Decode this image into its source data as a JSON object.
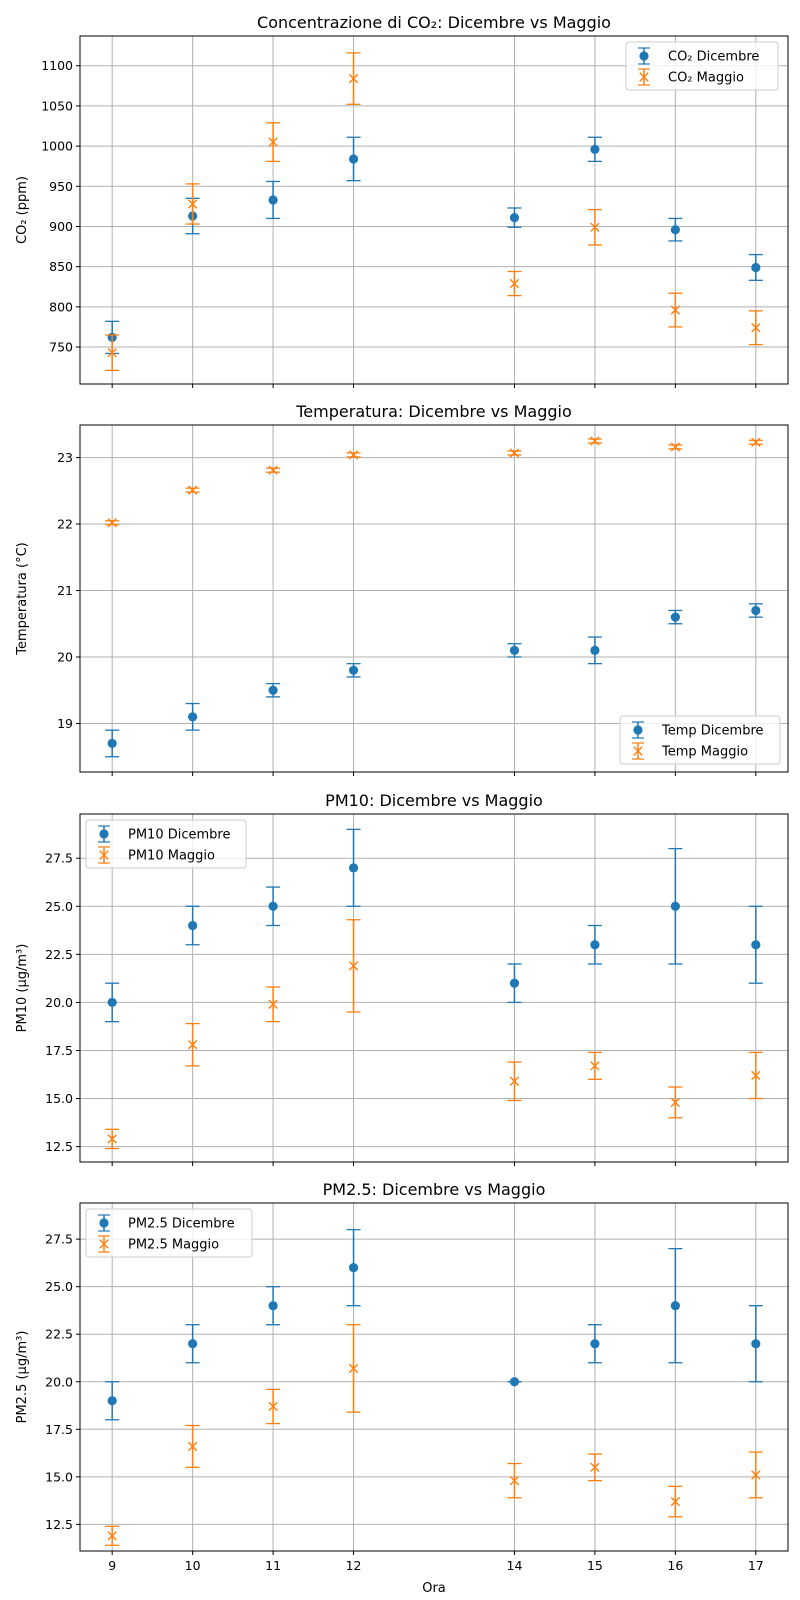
{
  "colors": {
    "dicembre": "#1f77b4",
    "maggio": "#ff7f0e"
  },
  "chart_data": [
    {
      "type": "scatter",
      "title": "Concentrazione di CO₂: Dicembre vs Maggio",
      "ylabel": "CO₂ (ppm)",
      "xlabel": "",
      "x": [
        9,
        10,
        11,
        12,
        14,
        15,
        16,
        17
      ],
      "xlim": [
        8.6,
        17.4
      ],
      "ylim": [
        704,
        1137
      ],
      "yticks": [
        750,
        800,
        850,
        900,
        950,
        1000,
        1050,
        1100
      ],
      "yticklabels": [
        "750",
        "800",
        "850",
        "900",
        "950",
        "1000",
        "1050",
        "1100"
      ],
      "legend": "upper-right",
      "grid": true,
      "series": [
        {
          "name": "CO₂ Dicembre",
          "marker": "circle",
          "values": [
            762,
            913,
            933,
            984,
            911,
            996,
            896,
            849
          ],
          "errors": [
            20,
            22,
            23,
            27,
            12,
            15,
            14,
            16
          ]
        },
        {
          "name": "CO₂ Maggio",
          "marker": "x",
          "values": [
            743,
            928,
            1005,
            1084,
            829,
            899,
            796,
            774
          ],
          "errors": [
            22,
            25,
            24,
            32,
            15,
            22,
            21,
            21
          ]
        }
      ]
    },
    {
      "type": "scatter",
      "title": "Temperatura: Dicembre vs Maggio",
      "ylabel": "Temperatura (°C)",
      "xlabel": "",
      "x": [
        9,
        10,
        11,
        12,
        14,
        15,
        16,
        17
      ],
      "xlim": [
        8.6,
        17.4
      ],
      "ylim": [
        18.27,
        23.49
      ],
      "yticks": [
        19,
        20,
        21,
        22,
        23
      ],
      "yticklabels": [
        "19",
        "20",
        "21",
        "22",
        "23"
      ],
      "legend": "lower-right",
      "grid": true,
      "series": [
        {
          "name": "Temp Dicembre",
          "marker": "circle",
          "values": [
            18.7,
            19.1,
            19.5,
            19.8,
            20.1,
            20.1,
            20.6,
            20.7
          ],
          "errors": [
            0.2,
            0.2,
            0.1,
            0.1,
            0.1,
            0.2,
            0.1,
            0.1
          ]
        },
        {
          "name": "Temp Maggio",
          "marker": "x",
          "values": [
            22.02,
            22.51,
            22.81,
            23.04,
            23.07,
            23.25,
            23.16,
            23.23
          ],
          "errors": [
            0.03,
            0.03,
            0.03,
            0.03,
            0.03,
            0.03,
            0.03,
            0.03
          ]
        }
      ]
    },
    {
      "type": "scatter",
      "title": "PM10: Dicembre vs Maggio",
      "ylabel": "PM10 (µg/m³)",
      "xlabel": "",
      "x": [
        9,
        10,
        11,
        12,
        14,
        15,
        16,
        17
      ],
      "xlim": [
        8.6,
        17.4
      ],
      "ylim": [
        11.7,
        29.8
      ],
      "yticks": [
        12.5,
        15.0,
        17.5,
        20.0,
        22.5,
        25.0,
        27.5
      ],
      "yticklabels": [
        "12.5",
        "15.0",
        "17.5",
        "20.0",
        "22.5",
        "25.0",
        "27.5"
      ],
      "legend": "upper-left",
      "grid": true,
      "series": [
        {
          "name": "PM10 Dicembre",
          "marker": "circle",
          "values": [
            20,
            24,
            25,
            27,
            21,
            23,
            25,
            23
          ],
          "errors": [
            1,
            1,
            1,
            2,
            1,
            1,
            3,
            2
          ]
        },
        {
          "name": "PM10 Maggio",
          "marker": "x",
          "values": [
            12.9,
            17.8,
            19.9,
            21.9,
            15.9,
            16.7,
            14.8,
            16.2
          ],
          "errors": [
            0.5,
            1.1,
            0.9,
            2.4,
            1.0,
            0.7,
            0.8,
            1.2
          ]
        }
      ]
    },
    {
      "type": "scatter",
      "title": "PM2.5: Dicembre vs Maggio",
      "ylabel": "PM2.5 (µg/m³)",
      "xlabel": "Ora",
      "x": [
        9,
        10,
        11,
        12,
        14,
        15,
        16,
        17
      ],
      "xticklabels": [
        "9",
        "10",
        "11",
        "12",
        "14",
        "15",
        "16",
        "17"
      ],
      "xlim": [
        8.6,
        17.4
      ],
      "ylim": [
        11.1,
        29.4
      ],
      "yticks": [
        12.5,
        15.0,
        17.5,
        20.0,
        22.5,
        25.0,
        27.5
      ],
      "yticklabels": [
        "12.5",
        "15.0",
        "17.5",
        "20.0",
        "22.5",
        "25.0",
        "27.5"
      ],
      "legend": "upper-left",
      "grid": true,
      "series": [
        {
          "name": "PM2.5 Dicembre",
          "marker": "circle",
          "values": [
            19,
            22,
            24,
            26,
            20,
            22,
            24,
            22
          ],
          "errors": [
            1,
            1,
            1,
            2,
            0,
            1,
            3,
            2
          ]
        },
        {
          "name": "PM2.5 Maggio",
          "marker": "x",
          "values": [
            11.9,
            16.6,
            18.7,
            20.7,
            14.8,
            15.5,
            13.7,
            15.1
          ],
          "errors": [
            0.5,
            1.1,
            0.9,
            2.3,
            0.9,
            0.7,
            0.8,
            1.2
          ]
        }
      ]
    }
  ]
}
